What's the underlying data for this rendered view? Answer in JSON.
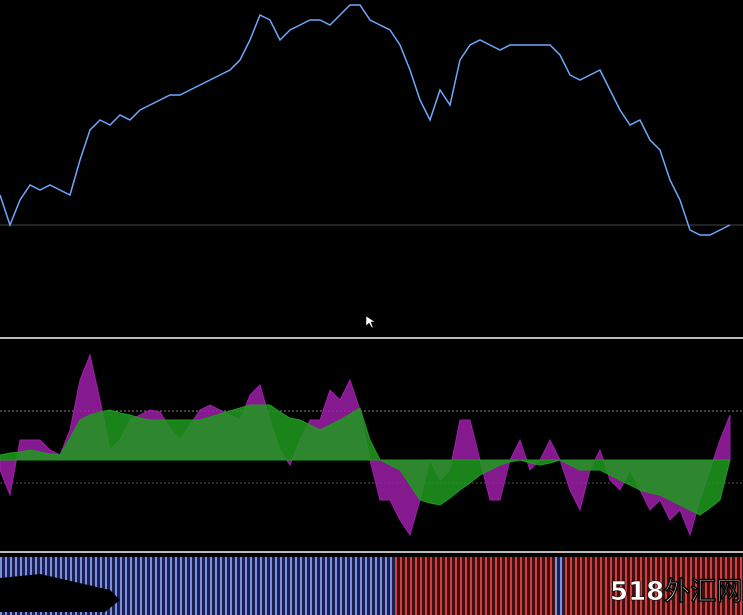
{
  "watermark": "518外汇网",
  "chart_data": [
    {
      "type": "line",
      "color": "#6fa8ff",
      "ylim": [
        -35,
        300
      ],
      "values": [
        105,
        75,
        100,
        115,
        110,
        115,
        110,
        105,
        140,
        170,
        180,
        175,
        185,
        180,
        190,
        195,
        200,
        205,
        205,
        210,
        215,
        220,
        225,
        230,
        240,
        260,
        285,
        280,
        260,
        270,
        275,
        280,
        280,
        275,
        285,
        295,
        295,
        280,
        275,
        270,
        255,
        230,
        200,
        180,
        210,
        195,
        240,
        255,
        260,
        255,
        250,
        255,
        255,
        255,
        255,
        255,
        245,
        225,
        220,
        225,
        230,
        210,
        190,
        175,
        180,
        160,
        150,
        120,
        100,
        70,
        65,
        65,
        70,
        75
      ]
    },
    {
      "type": "area",
      "ylim": [
        -90,
        120
      ],
      "series": [
        {
          "color": "#9c1fa8",
          "values": [
            -10,
            -35,
            20,
            20,
            20,
            10,
            5,
            30,
            80,
            105,
            60,
            10,
            20,
            40,
            45,
            50,
            48,
            32,
            20,
            35,
            50,
            55,
            50,
            45,
            40,
            65,
            75,
            40,
            10,
            -5,
            20,
            40,
            40,
            70,
            60,
            80,
            50,
            0,
            -40,
            -40,
            -60,
            -75,
            -40,
            0,
            -20,
            -10,
            40,
            40,
            0,
            -40,
            -40,
            0,
            20,
            -10,
            0,
            20,
            0,
            -30,
            -50,
            -10,
            10,
            -20,
            -30,
            -10,
            -30,
            -50,
            -40,
            -60,
            -50,
            -75,
            -40,
            -10,
            20,
            45
          ]
        },
        {
          "color": "#1f9a1f",
          "values": [
            5,
            7,
            8,
            10,
            8,
            6,
            5,
            22,
            40,
            45,
            48,
            50,
            47,
            45,
            42,
            40,
            40,
            40,
            40,
            40,
            40,
            43,
            46,
            49,
            52,
            55,
            55,
            55,
            48,
            42,
            40,
            35,
            30,
            35,
            40,
            46,
            52,
            20,
            0,
            -5,
            -10,
            -25,
            -40,
            -43,
            -45,
            -38,
            -30,
            -23,
            -15,
            -10,
            -5,
            -2,
            0,
            -3,
            -5,
            -3,
            0,
            -5,
            -10,
            -10,
            -10,
            -15,
            -20,
            -25,
            -30,
            -33,
            -35,
            -40,
            -45,
            -50,
            -55,
            -48,
            -40,
            0
          ]
        }
      ]
    }
  ]
}
